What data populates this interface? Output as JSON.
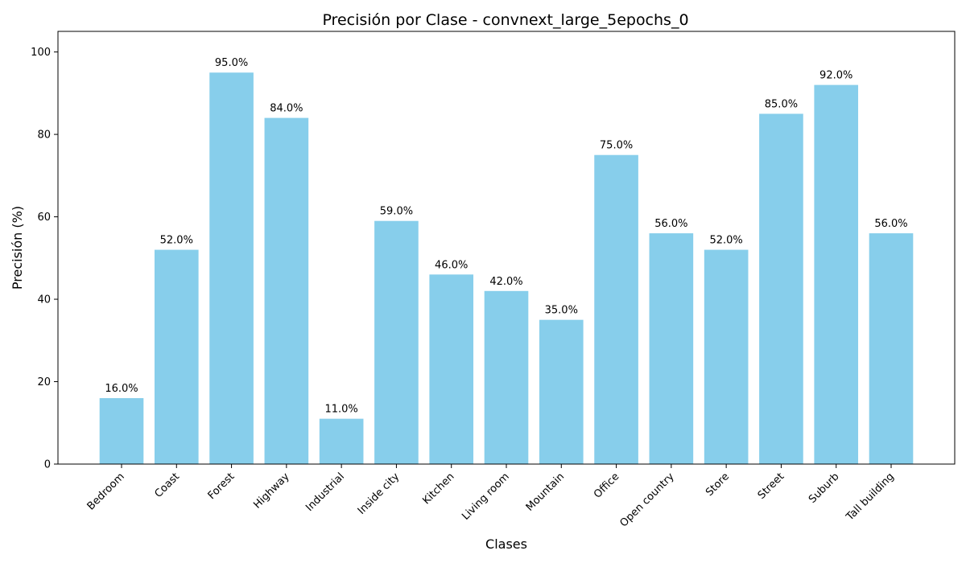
{
  "chart_data": {
    "type": "bar",
    "title": "Precisión por Clase - convnext_large_5epochs_0",
    "xlabel": "Clases",
    "ylabel": "Precisión (%)",
    "categories": [
      "Bedroom",
      "Coast",
      "Forest",
      "Highway",
      "Industrial",
      "Inside city",
      "Kitchen",
      "Living room",
      "Mountain",
      "Office",
      "Open country",
      "Store",
      "Street",
      "Suburb",
      "Tall building"
    ],
    "values": [
      16,
      52,
      95,
      84,
      11,
      59,
      46,
      42,
      35,
      75,
      56,
      52,
      85,
      92,
      56
    ],
    "value_labels": [
      "16.0%",
      "52.0%",
      "95.0%",
      "84.0%",
      "11.0%",
      "59.0%",
      "46.0%",
      "42.0%",
      "35.0%",
      "75.0%",
      "56.0%",
      "52.0%",
      "85.0%",
      "92.0%",
      "56.0%"
    ],
    "ylim": [
      0,
      105
    ],
    "yticks": [
      0,
      20,
      40,
      60,
      80,
      100
    ],
    "bar_color": "#87ceeb",
    "grid": false,
    "legend": "none"
  }
}
